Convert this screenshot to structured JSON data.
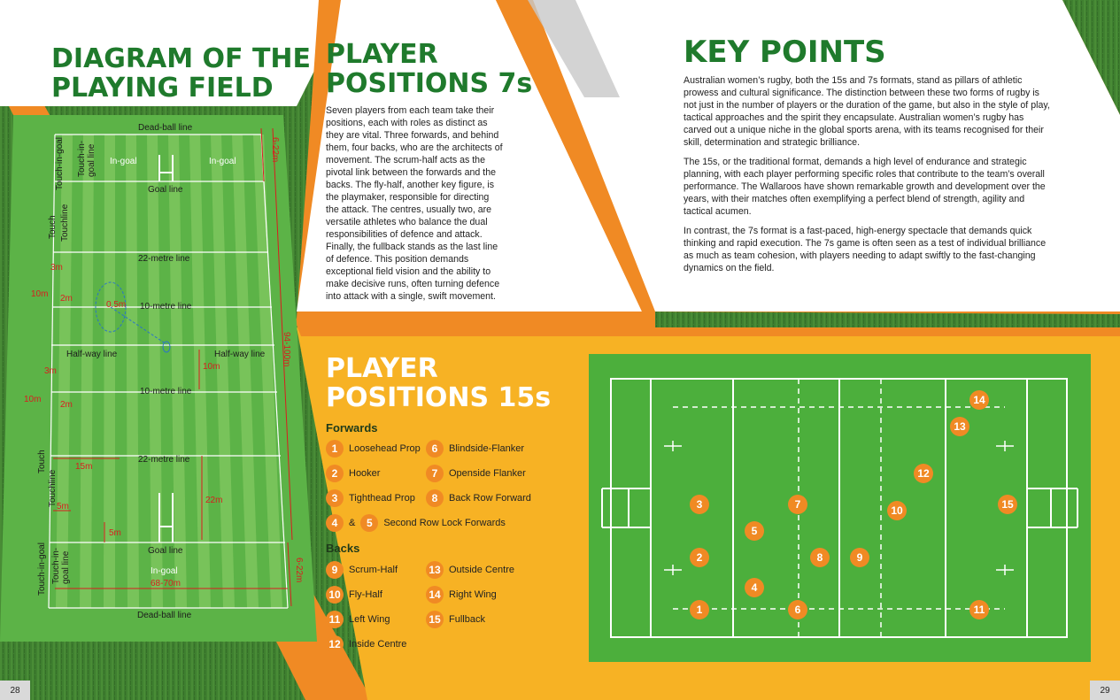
{
  "page_left": {
    "title_line1": "DIAGRAM OF THE",
    "title_line2": "PLAYING FIELD",
    "page_number": "28"
  },
  "page_right": {
    "page_number": "29"
  },
  "field": {
    "dead_ball_top": "Dead-ball line",
    "dead_ball_bottom": "Dead-ball line",
    "in_goal_left": "In-goal",
    "in_goal_right": "In-goal",
    "in_goal_bottom": "In-goal",
    "goal_line_top": "Goal line",
    "goal_line_bottom": "Goal line",
    "line_22_top": "22-metre line",
    "line_22_bottom": "22-metre line",
    "line_10_top": "10-metre line",
    "line_10_bottom": "10-metre line",
    "half_way_left": "Half-way line",
    "half_way_right": "Half-way line",
    "touch_in_goal_top": "Touch-in-goal",
    "touch_in_goal_line_top_1": "Touch-in-",
    "touch_in_goal_line_top_2": "goal line",
    "touch_top": "Touch",
    "touchline_top": "Touchline",
    "touch_bottom": "Touch",
    "touchline_bottom": "Touchline",
    "touch_in_goal_bottom": "Touch-in-goal",
    "touch_in_goal_line_bottom_1": "Touch-in-",
    "touch_in_goal_line_bottom_2": "goal line",
    "dim_6_22_top": "6-22m",
    "dim_6_22_bottom": "6-22m",
    "dim_94_100": "94-100m",
    "dim_68_70": "68-70m",
    "dim_3m_a": "3m",
    "dim_10m_a": "10m",
    "dim_2m_a": "2m",
    "dim_0_5m": "0.5m",
    "dim_3m_b": "3m",
    "dim_10m_b": "10m",
    "dim_2m_b": "2m",
    "dim_10m_c": "10m",
    "dim_15m": "15m",
    "dim_5m_a": "5m",
    "dim_5m_b": "5m",
    "dim_22m": "22m"
  },
  "sevens": {
    "title_line1": "PLAYER",
    "title_line2": "POSITIONS 7s",
    "body": "Seven players from each team take their positions, each with roles as distinct as they are vital. Three forwards, and behind them, four backs, who are the architects of movement. The scrum-half acts as the pivotal link between the forwards and the backs. The fly-half, another key figure, is the playmaker, responsible for directing the attack. The centres, usually two, are versatile athletes who balance the dual responsibilities of defence and attack. Finally, the fullback stands as the last line of defence. This position demands exceptional field vision and the ability to make decisive runs, often turning defence into attack with a single, swift movement."
  },
  "key_points": {
    "title": "KEY POINTS",
    "p1": "Australian women’s rugby, both the 15s and 7s formats, stand as pillars of athletic prowess and cultural significance. The distinction between these two forms of rugby is not just in the number of players or the duration of the game, but also in the style of play, tactical approaches and the spirit they encapsulate. Australian women’s rugby has carved out a unique niche in the global sports arena, with its teams recognised for their skill, determination and strategic brilliance.",
    "p2": "The 15s, or the traditional format, demands a high level of endurance and strategic planning, with each player performing specific roles that contribute to the team’s overall performance. The Wallaroos have shown remarkable growth and development over the years, with their matches often exemplifying a perfect blend of strength, agility and tactical acumen.",
    "p3": "In contrast, the 7s format is a fast-paced, high-energy spectacle that demands quick thinking and rapid execution. The 7s game is often seen as a test of individual brilliance as much as team cohesion, with players needing to adapt swiftly to the fast-changing dynamics on the field."
  },
  "fifteens": {
    "title_line1": "PLAYER",
    "title_line2": "POSITIONS 15s",
    "forwards_heading": "Forwards",
    "backs_heading": "Backs",
    "ampersand": "&",
    "forwards_left": [
      {
        "num": "1",
        "label": "Loosehead Prop"
      },
      {
        "num": "2",
        "label": "Hooker"
      },
      {
        "num": "3",
        "label": "Tighthead Prop"
      }
    ],
    "forwards_right": [
      {
        "num": "6",
        "label": "Blindside-Flanker"
      },
      {
        "num": "7",
        "label": "Openside Flanker"
      },
      {
        "num": "8",
        "label": "Back Row Forward"
      }
    ],
    "lock_nums": [
      "4",
      "5"
    ],
    "lock_label": "Second Row Lock Forwards",
    "backs_left": [
      {
        "num": "9",
        "label": "Scrum-Half"
      },
      {
        "num": "10",
        "label": "Fly-Half"
      },
      {
        "num": "11",
        "label": "Left Wing"
      },
      {
        "num": "12",
        "label": "Inside Centre"
      }
    ],
    "backs_right": [
      {
        "num": "13",
        "label": "Outside Centre"
      },
      {
        "num": "14",
        "label": "Right Wing"
      },
      {
        "num": "15",
        "label": "Fullback"
      }
    ]
  },
  "formation_markers": [
    "1",
    "2",
    "3",
    "4",
    "5",
    "6",
    "7",
    "8",
    "9",
    "10",
    "11",
    "12",
    "13",
    "14",
    "15"
  ],
  "colors": {
    "title_green": "#1f7a2c",
    "title_white": "#ffffff",
    "accent_orange": "#f08a24",
    "panel_yellow": "#f7b224",
    "pitch_green": "#4caf3c",
    "field_light": "#8fd06a",
    "field_dark": "#5bb045",
    "dimension_red": "#d81e1e"
  }
}
